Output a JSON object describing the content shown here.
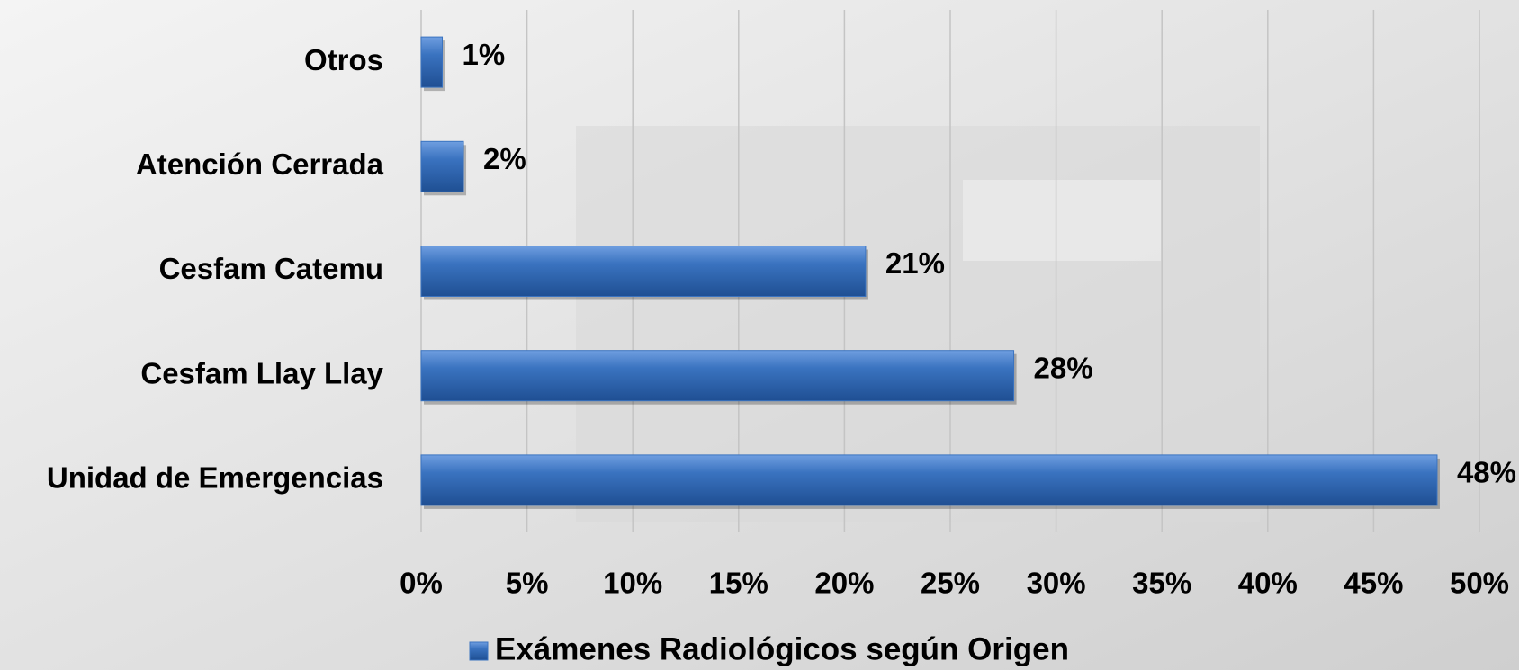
{
  "chart_data": {
    "type": "bar",
    "orientation": "horizontal",
    "categories": [
      "Otros",
      "Atención Cerrada",
      "Cesfam Catemu",
      "Cesfam Llay Llay",
      "Unidad de Emergencias"
    ],
    "series": [
      {
        "name": "Exámenes Radiológicos según Origen",
        "color": "#3a73c0",
        "values": [
          1,
          2,
          21,
          28,
          48
        ],
        "value_labels": [
          "1%",
          "2%",
          "21%",
          "28%",
          "48%"
        ]
      }
    ],
    "xlim": [
      0,
      50
    ],
    "xticks": [
      {
        "value": 0,
        "label": "0%"
      },
      {
        "value": 5,
        "label": "5%"
      },
      {
        "value": 10,
        "label": "10%"
      },
      {
        "value": 15,
        "label": "15%"
      },
      {
        "value": 20,
        "label": "20%"
      },
      {
        "value": 25,
        "label": "25%"
      },
      {
        "value": 30,
        "label": "30%"
      },
      {
        "value": 35,
        "label": "35%"
      },
      {
        "value": 40,
        "label": "40%"
      },
      {
        "value": 45,
        "label": "45%"
      },
      {
        "value": 50,
        "label": "50%"
      }
    ],
    "grid": true,
    "legend": "bottom"
  }
}
